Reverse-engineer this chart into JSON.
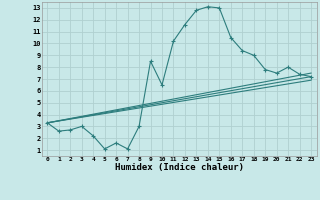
{
  "xlabel": "Humidex (Indice chaleur)",
  "background_color": "#c8e8e8",
  "grid_color": "#b0d0d0",
  "line_color": "#2d7d7d",
  "xlim": [
    -0.5,
    23.5
  ],
  "ylim": [
    0.5,
    13.5
  ],
  "xticks": [
    0,
    1,
    2,
    3,
    4,
    5,
    6,
    7,
    8,
    9,
    10,
    11,
    12,
    13,
    14,
    15,
    16,
    17,
    18,
    19,
    20,
    21,
    22,
    23
  ],
  "yticks": [
    1,
    2,
    3,
    4,
    5,
    6,
    7,
    8,
    9,
    10,
    11,
    12,
    13
  ],
  "main_series_x": [
    0,
    1,
    2,
    3,
    4,
    5,
    6,
    7,
    8,
    9,
    10,
    11,
    12,
    13,
    14,
    15,
    16,
    17,
    18,
    19,
    20,
    21,
    22,
    23
  ],
  "main_series_y": [
    3.3,
    2.6,
    2.7,
    3.0,
    2.2,
    1.1,
    1.6,
    1.1,
    3.0,
    8.5,
    6.5,
    10.2,
    11.6,
    12.8,
    13.1,
    13.0,
    10.5,
    9.4,
    9.0,
    7.8,
    7.5,
    8.0,
    7.4,
    7.2
  ],
  "trend1_y_end": 7.5,
  "trend2_y_end": 7.2,
  "trend3_y_end": 6.9,
  "trend_x_start": 0,
  "trend_y_start": 3.3,
  "trend_x_end": 23
}
